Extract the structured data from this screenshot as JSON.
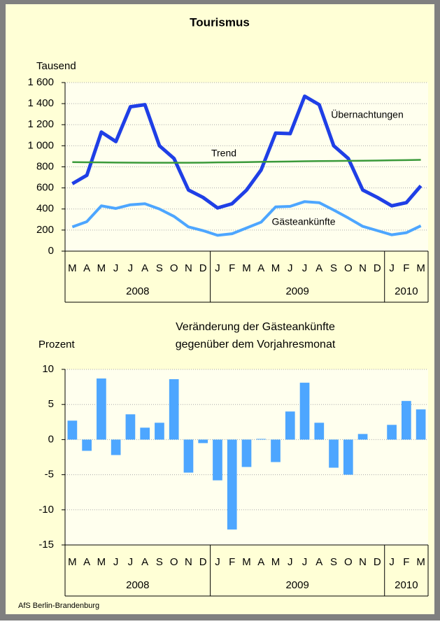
{
  "chart_data": [
    {
      "type": "line",
      "title": "Tourismus",
      "y_label": "Tausend",
      "categories": [
        "M",
        "A",
        "M",
        "J",
        "J",
        "A",
        "S",
        "O",
        "N",
        "D",
        "J",
        "F",
        "M",
        "A",
        "M",
        "J",
        "J",
        "A",
        "S",
        "O",
        "N",
        "D",
        "J",
        "F",
        "M"
      ],
      "groups": [
        "2008",
        "2009",
        "2010"
      ],
      "series": [
        {
          "name": "Übernachtungen",
          "color": "#1f3fe6",
          "values": [
            640,
            720,
            1130,
            1040,
            1370,
            1390,
            1000,
            880,
            580,
            510,
            410,
            450,
            580,
            770,
            1120,
            1115,
            1470,
            1390,
            1000,
            880,
            580,
            510,
            430,
            460,
            620
          ]
        },
        {
          "name": "Trend",
          "color": "#3a9a3a",
          "values": [
            845,
            843,
            842,
            841,
            840,
            839,
            839,
            839,
            839,
            840,
            842,
            843,
            845,
            847,
            849,
            851,
            853,
            855,
            856,
            857,
            858,
            860,
            862,
            864,
            866
          ]
        },
        {
          "name": "Gästeankünfte",
          "color": "#4da6ff",
          "values": [
            230,
            280,
            430,
            405,
            440,
            450,
            400,
            330,
            230,
            195,
            150,
            165,
            220,
            275,
            420,
            425,
            470,
            460,
            390,
            315,
            235,
            195,
            155,
            175,
            240
          ]
        }
      ],
      "ylim": [
        0,
        1600
      ],
      "yticks": [
        0,
        200,
        400,
        600,
        800,
        {
          "value": 1000,
          "label": "1 000"
        },
        {
          "value": 1200,
          "label": "1 200"
        },
        {
          "value": 1400,
          "label": "1 400"
        },
        {
          "value": 1600,
          "label": "1 600"
        }
      ],
      "grid": true
    },
    {
      "type": "bar",
      "title": [
        "Veränderung der Gästeankünfte",
        "gegenüber dem Vorjahresmonat"
      ],
      "y_label": "Prozent",
      "categories": [
        "M",
        "A",
        "M",
        "J",
        "J",
        "A",
        "S",
        "O",
        "N",
        "D",
        "J",
        "F",
        "M",
        "A",
        "M",
        "J",
        "J",
        "A",
        "S",
        "O",
        "N",
        "D",
        "J",
        "F",
        "M"
      ],
      "groups": [
        "2008",
        "2009",
        "2010"
      ],
      "color": "#4da6ff",
      "values": [
        2.7,
        -1.6,
        8.7,
        -2.2,
        3.6,
        1.7,
        2.4,
        8.6,
        -4.7,
        -0.5,
        -5.8,
        -12.8,
        -3.9,
        0.1,
        -3.2,
        4.0,
        8.1,
        2.4,
        -4.0,
        -5.0,
        0.8,
        0,
        2.1,
        5.5,
        4.3
      ],
      "ylim": [
        -15,
        10
      ],
      "yticks": [
        -15,
        -10,
        -5,
        0,
        5,
        10
      ],
      "grid": true
    }
  ],
  "footer": "AfS Berlin-Brandenburg"
}
